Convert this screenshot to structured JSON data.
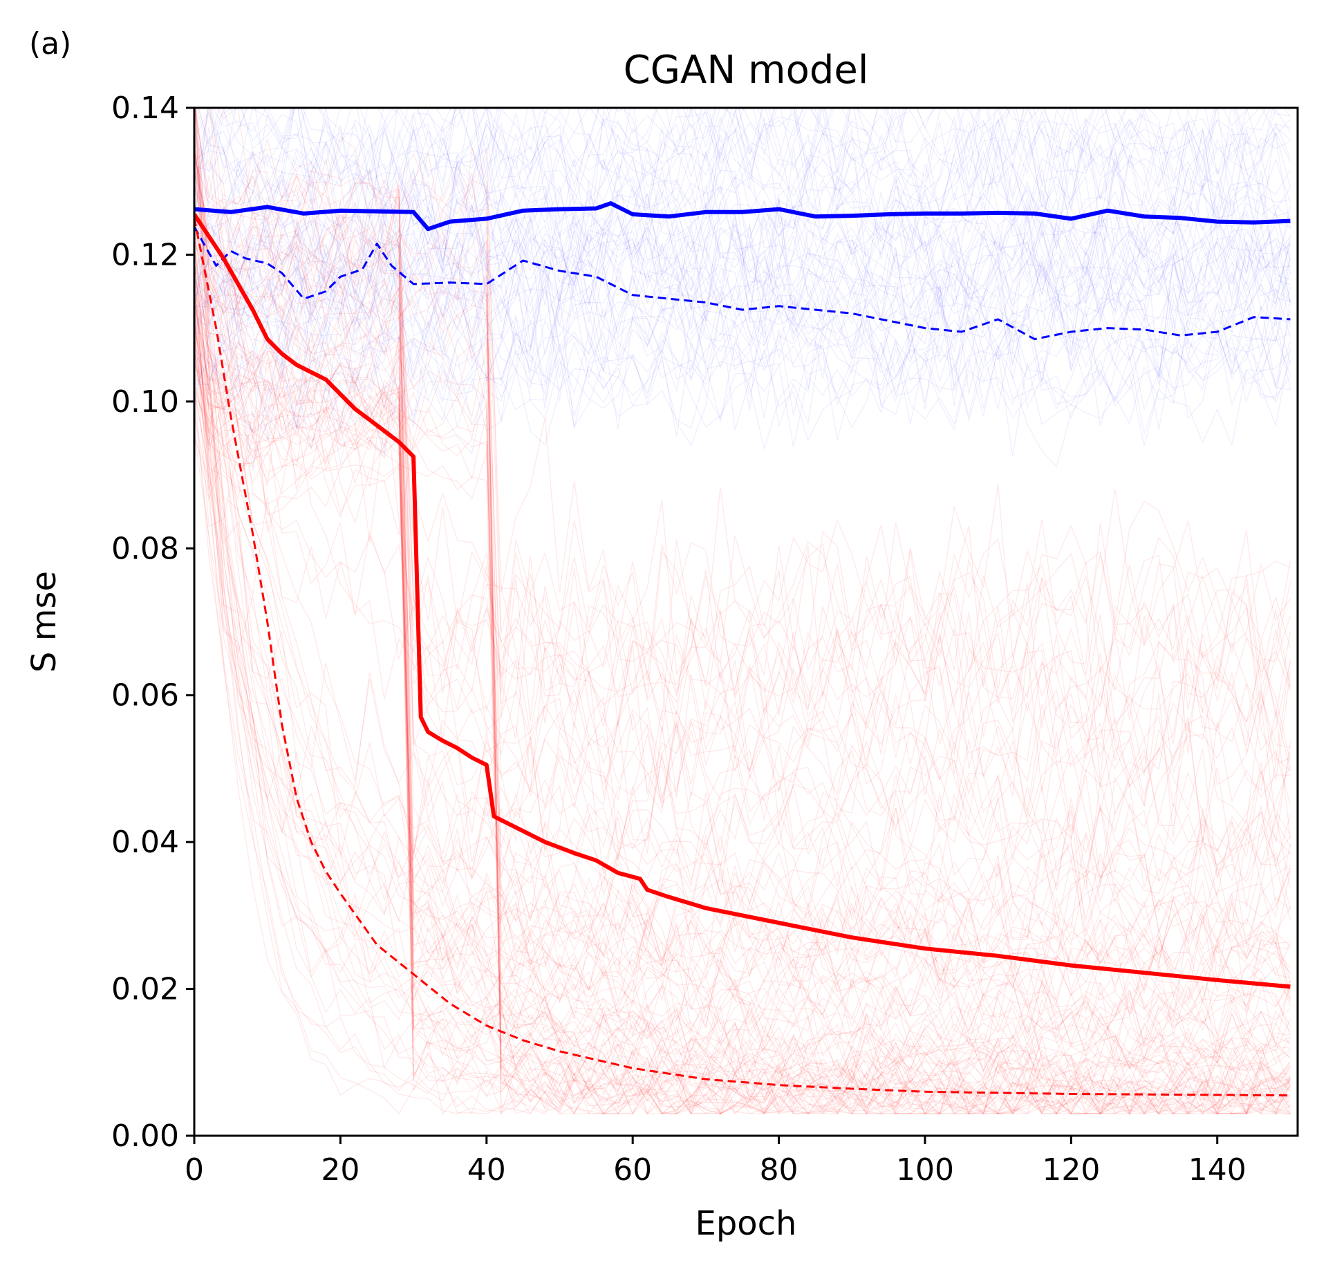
{
  "panel_label": "(a)",
  "chart_data": {
    "type": "line",
    "title": "CGAN model",
    "xlabel": "Epoch",
    "ylabel": "S mse",
    "xlim": [
      0,
      151
    ],
    "ylim": [
      0,
      0.14
    ],
    "xticks": [
      0,
      20,
      40,
      60,
      80,
      100,
      120,
      140
    ],
    "xtick_labels": [
      "0",
      "20",
      "40",
      "60",
      "80",
      "100",
      "120",
      "140"
    ],
    "yticks": [
      0,
      0.02,
      0.04,
      0.06,
      0.08,
      0.1,
      0.12,
      0.14
    ],
    "ytick_labels": [
      "0.00",
      "0.02",
      "0.04",
      "0.06",
      "0.08",
      "0.10",
      "0.12",
      "0.14"
    ],
    "grid": false,
    "series": [
      {
        "name": "blue-mean",
        "color": "#0000ff",
        "style": "solid",
        "x": [
          0,
          5,
          10,
          15,
          20,
          25,
          30,
          32,
          35,
          40,
          45,
          50,
          55,
          57,
          60,
          65,
          70,
          75,
          80,
          85,
          90,
          95,
          100,
          105,
          110,
          115,
          120,
          125,
          130,
          135,
          140,
          145,
          150
        ],
        "values": [
          0.1262,
          0.1258,
          0.1265,
          0.1256,
          0.126,
          0.1259,
          0.1258,
          0.1235,
          0.1245,
          0.1249,
          0.126,
          0.1262,
          0.1263,
          0.127,
          0.1255,
          0.1252,
          0.1258,
          0.1258,
          0.1262,
          0.1252,
          0.1253,
          0.1255,
          0.1256,
          0.1256,
          0.1257,
          0.1256,
          0.1249,
          0.126,
          0.1252,
          0.125,
          0.1245,
          0.1244,
          0.1246
        ]
      },
      {
        "name": "blue-best",
        "color": "#0000ff",
        "style": "dashed",
        "x": [
          0,
          3,
          5,
          7,
          10,
          12,
          15,
          18,
          20,
          23,
          25,
          27,
          30,
          35,
          40,
          45,
          50,
          55,
          60,
          65,
          70,
          75,
          80,
          85,
          90,
          95,
          100,
          105,
          110,
          115,
          120,
          125,
          130,
          135,
          140,
          145,
          150
        ],
        "values": [
          0.1238,
          0.1185,
          0.1205,
          0.1195,
          0.1188,
          0.1175,
          0.114,
          0.115,
          0.117,
          0.118,
          0.1215,
          0.1185,
          0.116,
          0.1162,
          0.116,
          0.1192,
          0.1178,
          0.117,
          0.1145,
          0.114,
          0.1135,
          0.1125,
          0.113,
          0.1125,
          0.112,
          0.111,
          0.11,
          0.1095,
          0.1112,
          0.1085,
          0.1095,
          0.11,
          0.1098,
          0.109,
          0.1095,
          0.1115,
          0.1112
        ]
      },
      {
        "name": "red-mean",
        "color": "#ff0000",
        "style": "solid",
        "x": [
          0,
          2,
          4,
          6,
          8,
          10,
          12,
          14,
          16,
          18,
          20,
          22,
          24,
          26,
          28,
          30,
          31,
          32,
          34,
          36,
          38,
          40,
          41,
          42,
          45,
          48,
          52,
          55,
          58,
          61,
          62,
          65,
          70,
          80,
          90,
          100,
          110,
          120,
          130,
          140,
          150
        ],
        "values": [
          0.1255,
          0.1225,
          0.1195,
          0.116,
          0.1125,
          0.1085,
          0.1065,
          0.105,
          0.104,
          0.103,
          0.101,
          0.099,
          0.0975,
          0.096,
          0.0945,
          0.0925,
          0.057,
          0.055,
          0.0538,
          0.0528,
          0.0515,
          0.0505,
          0.0435,
          0.043,
          0.0415,
          0.04,
          0.0385,
          0.0375,
          0.0358,
          0.035,
          0.0335,
          0.0325,
          0.031,
          0.029,
          0.027,
          0.0255,
          0.0245,
          0.0232,
          0.0222,
          0.0212,
          0.0203
        ]
      },
      {
        "name": "red-best",
        "color": "#ff0000",
        "style": "dashed",
        "x": [
          0,
          3,
          5,
          8,
          10,
          12,
          14,
          16,
          18,
          20,
          25,
          30,
          35,
          40,
          45,
          50,
          60,
          70,
          80,
          90,
          100,
          120,
          150
        ],
        "values": [
          0.125,
          0.11,
          0.098,
          0.082,
          0.07,
          0.056,
          0.046,
          0.04,
          0.036,
          0.033,
          0.026,
          0.022,
          0.018,
          0.015,
          0.013,
          0.0115,
          0.0092,
          0.0077,
          0.0069,
          0.0064,
          0.006,
          0.0057,
          0.0055
        ]
      }
    ]
  }
}
